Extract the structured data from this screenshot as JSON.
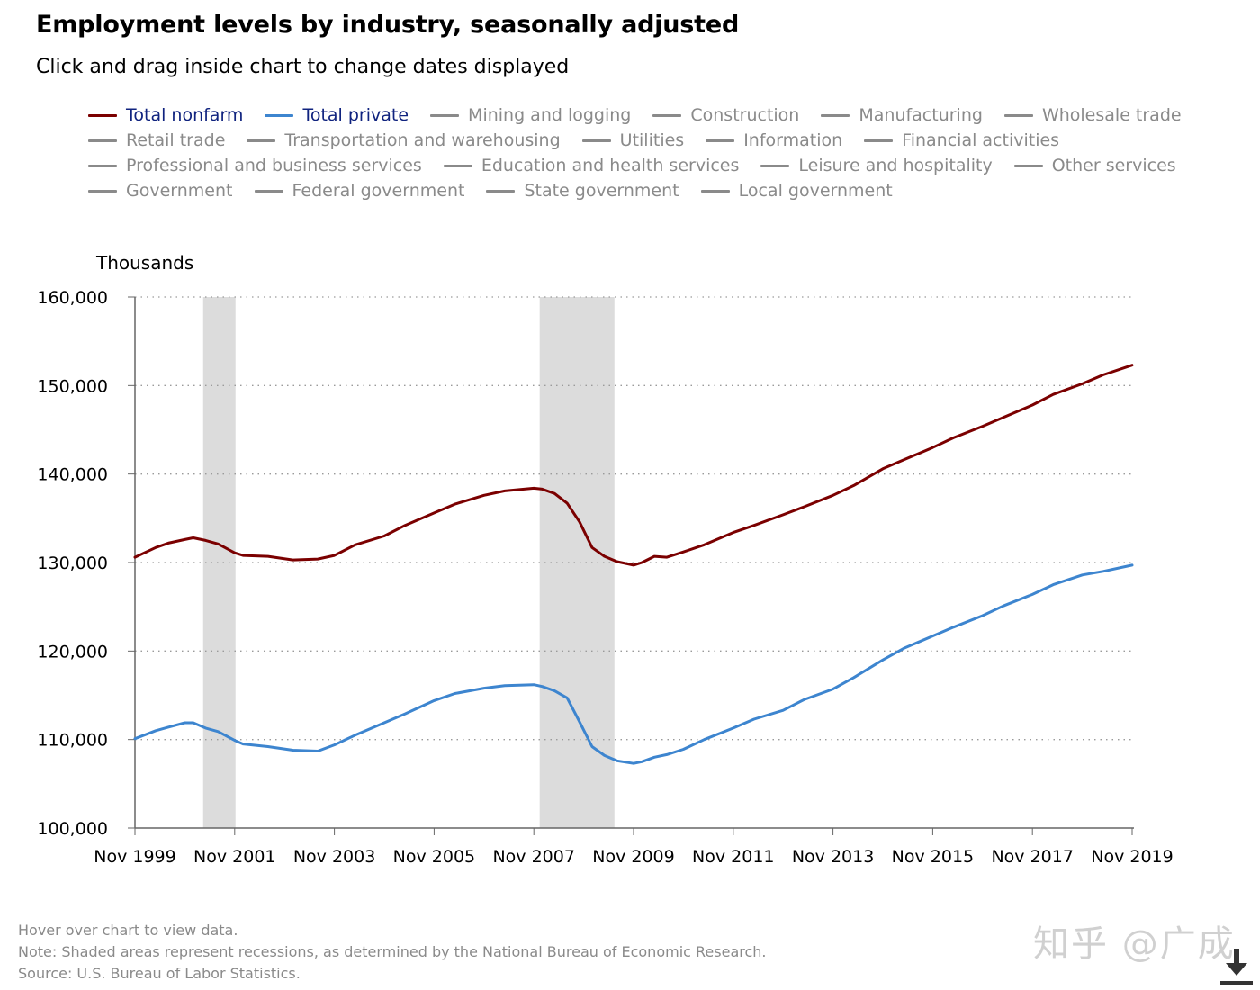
{
  "header": {
    "title": "Employment levels by industry, seasonally adjusted",
    "subtitle": "Click and drag inside chart to change dates displayed"
  },
  "legend": [
    {
      "label": "Total nonfarm",
      "active": true,
      "color": "#7b0000"
    },
    {
      "label": "Total private",
      "active": true,
      "color": "#3d85cf"
    },
    {
      "label": "Mining and logging",
      "active": false
    },
    {
      "label": "Construction",
      "active": false
    },
    {
      "label": "Manufacturing",
      "active": false
    },
    {
      "label": "Wholesale trade",
      "active": false
    },
    {
      "label": "Retail trade",
      "active": false
    },
    {
      "label": "Transportation and warehousing",
      "active": false
    },
    {
      "label": "Utilities",
      "active": false
    },
    {
      "label": "Information",
      "active": false
    },
    {
      "label": "Financial activities",
      "active": false
    },
    {
      "label": "Professional and business services",
      "active": false
    },
    {
      "label": "Education and health services",
      "active": false
    },
    {
      "label": "Leisure and hospitality",
      "active": false
    },
    {
      "label": "Other services",
      "active": false
    },
    {
      "label": "Government",
      "active": false
    },
    {
      "label": "Federal government",
      "active": false
    },
    {
      "label": "State government",
      "active": false
    },
    {
      "label": "Local government",
      "active": false
    }
  ],
  "chart_data": {
    "type": "line",
    "title": "Employment levels by industry, seasonally adjusted",
    "ylabel": "Thousands",
    "xlabel": "",
    "x_range": [
      1999.833,
      2019.833
    ],
    "ylim": [
      100000,
      160000
    ],
    "y_ticks": [
      100000,
      110000,
      120000,
      130000,
      140000,
      150000,
      160000
    ],
    "y_tick_labels": [
      "100,000",
      "110,000",
      "120,000",
      "130,000",
      "140,000",
      "150,000",
      "160,000"
    ],
    "x_ticks": [
      1999.833,
      2001.833,
      2003.833,
      2005.833,
      2007.833,
      2009.833,
      2011.833,
      2013.833,
      2015.833,
      2017.833,
      2019.833
    ],
    "x_tick_labels": [
      "Nov 1999",
      "Nov 2001",
      "Nov 2003",
      "Nov 2005",
      "Nov 2007",
      "Nov 2009",
      "Nov 2011",
      "Nov 2013",
      "Nov 2015",
      "Nov 2017",
      "Nov 2019"
    ],
    "grid": "horizontal dotted",
    "recessions": [
      {
        "start": 2001.2,
        "end": 2001.85
      },
      {
        "start": 2007.95,
        "end": 2009.45
      }
    ],
    "series": [
      {
        "name": "Total nonfarm",
        "color": "#7b0000",
        "x": [
          1999.833,
          2000.25,
          2000.5,
          2000.833,
          2001.0,
          2001.25,
          2001.5,
          2001.833,
          2002.0,
          2002.5,
          2003.0,
          2003.5,
          2003.833,
          2004.25,
          2004.833,
          2005.25,
          2005.833,
          2006.25,
          2006.833,
          2007.25,
          2007.833,
          2008.0,
          2008.25,
          2008.5,
          2008.75,
          2009.0,
          2009.25,
          2009.5,
          2009.833,
          2010.0,
          2010.25,
          2010.5,
          2010.833,
          2011.25,
          2011.833,
          2012.25,
          2012.833,
          2013.25,
          2013.833,
          2014.25,
          2014.833,
          2015.25,
          2015.833,
          2016.25,
          2016.833,
          2017.25,
          2017.833,
          2018.25,
          2018.833,
          2019.25,
          2019.833
        ],
        "values": [
          130600,
          131700,
          132200,
          132600,
          132800,
          132500,
          132100,
          131100,
          130800,
          130700,
          130300,
          130400,
          130800,
          132000,
          133000,
          134200,
          135600,
          136600,
          137600,
          138100,
          138400,
          138300,
          137800,
          136700,
          134600,
          131700,
          130700,
          130100,
          129700,
          130000,
          130700,
          130600,
          131200,
          132000,
          133400,
          134200,
          135400,
          136300,
          137600,
          138700,
          140600,
          141600,
          143000,
          144100,
          145400,
          146400,
          147800,
          149000,
          150200,
          151200,
          152300
        ]
      },
      {
        "name": "Total private",
        "color": "#3d85cf",
        "x": [
          1999.833,
          2000.25,
          2000.5,
          2000.833,
          2001.0,
          2001.25,
          2001.5,
          2001.833,
          2002.0,
          2002.5,
          2003.0,
          2003.5,
          2003.833,
          2004.25,
          2004.833,
          2005.25,
          2005.833,
          2006.25,
          2006.833,
          2007.25,
          2007.833,
          2008.0,
          2008.25,
          2008.5,
          2008.75,
          2009.0,
          2009.25,
          2009.5,
          2009.833,
          2010.0,
          2010.25,
          2010.5,
          2010.833,
          2011.25,
          2011.833,
          2012.25,
          2012.833,
          2013.25,
          2013.833,
          2014.25,
          2014.833,
          2015.25,
          2015.833,
          2016.25,
          2016.833,
          2017.25,
          2017.833,
          2018.25,
          2018.833,
          2019.25,
          2019.833
        ],
        "values": [
          110100,
          111000,
          111400,
          111900,
          111900,
          111300,
          110900,
          109900,
          109500,
          109200,
          108800,
          108700,
          109400,
          110500,
          111900,
          112900,
          114400,
          115200,
          115800,
          116100,
          116200,
          116000,
          115500,
          114700,
          112000,
          109200,
          108200,
          107600,
          107300,
          107500,
          108000,
          108300,
          108900,
          110000,
          111300,
          112300,
          113300,
          114500,
          115700,
          117000,
          119000,
          120300,
          121700,
          122700,
          124000,
          125100,
          126400,
          127500,
          128600,
          129000,
          129700
        ]
      }
    ]
  },
  "footer": {
    "hover_note": "Hover over chart to view data.",
    "note": "Note: Shaded areas represent recessions, as determined by the National Bureau of Economic Research.",
    "source": "Source: U.S. Bureau of Labor Statistics."
  },
  "watermark": "知乎 @广成",
  "icons": {
    "download": "download-icon"
  }
}
